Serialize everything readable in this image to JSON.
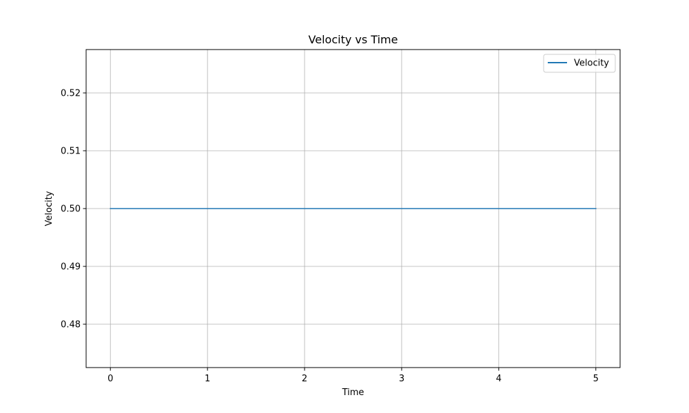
{
  "chart_data": {
    "type": "line",
    "title": "Velocity vs Time",
    "xlabel": "Time",
    "ylabel": "Velocity",
    "xlim": [
      -0.25,
      5.25
    ],
    "ylim": [
      0.4725,
      0.5275
    ],
    "xticks": [
      0,
      1,
      2,
      3,
      4,
      5
    ],
    "xtick_labels": [
      "0",
      "1",
      "2",
      "3",
      "4",
      "5"
    ],
    "yticks": [
      0.48,
      0.49,
      0.5,
      0.51,
      0.52
    ],
    "ytick_labels": [
      "0.48",
      "0.49",
      "0.50",
      "0.51",
      "0.52"
    ],
    "grid": true,
    "legend_position": "top-right",
    "series": [
      {
        "name": "Velocity",
        "color": "#1f77b4",
        "x": [
          0,
          1,
          2,
          3,
          4,
          5
        ],
        "y": [
          0.5,
          0.5,
          0.5,
          0.5,
          0.5,
          0.5
        ]
      }
    ]
  }
}
